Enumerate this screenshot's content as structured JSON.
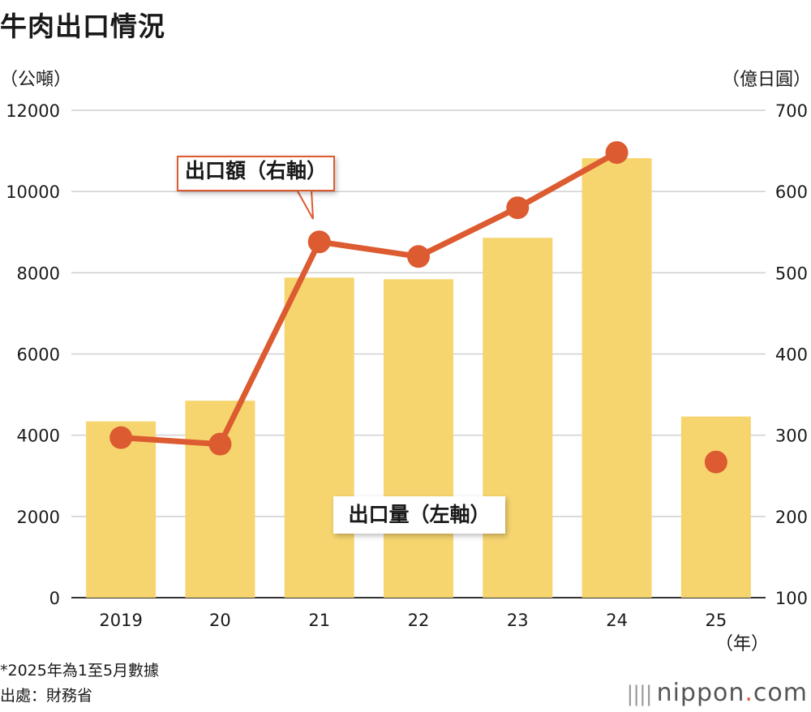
{
  "title": "牛肉出口情況",
  "left_unit": "（公噸）",
  "right_unit": "（億日圓）",
  "x_unit": "（年）",
  "note": "*2025年為1至5月數據",
  "source": "出處：財務省",
  "brand": {
    "marks": "||||",
    "name": "nippon",
    "dot": ".",
    "tld": "com"
  },
  "callouts": {
    "line": "出口額（右軸）",
    "bars": "出口量（左軸）"
  },
  "colors": {
    "bar": "#f6d56f",
    "line": "#dc5b30",
    "grid": "#cfcfcf"
  },
  "chart_data": {
    "type": "bar+line",
    "categories": [
      "2019",
      "20",
      "21",
      "22",
      "23",
      "24",
      "25"
    ],
    "y_left": {
      "label": "（公噸）",
      "range": [
        0,
        12000
      ],
      "ticks": [
        0,
        2000,
        4000,
        6000,
        8000,
        10000,
        12000
      ]
    },
    "y_right": {
      "label": "（億日圓）",
      "range": [
        100,
        700
      ],
      "ticks": [
        100,
        200,
        300,
        400,
        500,
        600,
        700
      ]
    },
    "series": [
      {
        "name": "出口量（左軸）",
        "type": "bar",
        "axis": "left",
        "values": [
          4340,
          4850,
          7880,
          7840,
          8860,
          10820,
          4460
        ]
      },
      {
        "name": "出口額（右軸）",
        "type": "line",
        "axis": "right",
        "values": [
          297,
          289,
          538,
          520,
          580,
          648,
          267
        ],
        "connected_count": 6
      }
    ],
    "grid": true
  }
}
